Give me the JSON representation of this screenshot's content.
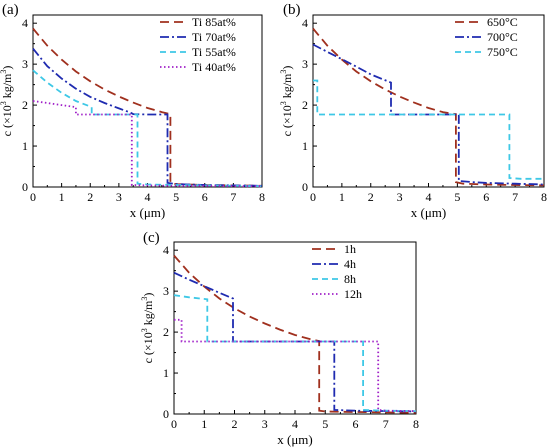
{
  "chart_data": [
    {
      "type": "line",
      "panel_label": "(a)",
      "xlabel": "x (μm)",
      "ylabel_parts": [
        "c (×10",
        "3",
        " kg/m",
        "3",
        ")"
      ],
      "xlim": [
        0,
        8
      ],
      "ylim": [
        0,
        4.2
      ],
      "xticks": [
        "0",
        "1",
        "2",
        "3",
        "4",
        "5",
        "6",
        "7",
        "8"
      ],
      "yticks": [
        "0",
        "1",
        "2",
        "3",
        "4"
      ],
      "legend_position": "top-right",
      "series": [
        {
          "name": "Ti 85at%",
          "color": "#a0301e",
          "dash": "long-dash",
          "x": [
            0,
            0.5,
            1,
            1.5,
            2,
            2.5,
            3,
            3.5,
            4,
            4.5,
            4.8,
            4.8,
            4.85,
            5,
            6,
            7,
            8
          ],
          "y": [
            3.87,
            3.45,
            3.11,
            2.82,
            2.58,
            2.38,
            2.21,
            2.06,
            1.93,
            1.83,
            1.78,
            0.12,
            0.08,
            0.07,
            0.05,
            0.04,
            0.03
          ]
        },
        {
          "name": "Ti 70at%",
          "color": "#1f2bb0",
          "dash": "dash-dot",
          "x": [
            0,
            0.5,
            1,
            1.5,
            2,
            2.5,
            3,
            3.4,
            3.5,
            4.0,
            4.7,
            4.7,
            5,
            6,
            7,
            8
          ],
          "y": [
            3.38,
            2.95,
            2.65,
            2.4,
            2.2,
            2.05,
            1.92,
            1.82,
            1.78,
            1.77,
            1.77,
            0.1,
            0.07,
            0.05,
            0.04,
            0.03
          ]
        },
        {
          "name": "Ti 55at%",
          "color": "#3ec8e6",
          "dash": "dash",
          "x": [
            0,
            0.5,
            1,
            1.5,
            2.05,
            2.05,
            3,
            3.65,
            3.65,
            4,
            5,
            6,
            7,
            8
          ],
          "y": [
            2.85,
            2.55,
            2.3,
            2.1,
            1.95,
            1.77,
            1.77,
            1.77,
            0.08,
            0.06,
            0.05,
            0.04,
            0.03,
            0.02
          ]
        },
        {
          "name": "Ti 40at%",
          "color": "#a020c8",
          "dash": "dot",
          "x": [
            0,
            0.5,
            1,
            1.5,
            1.5,
            2.5,
            3.45,
            3.45,
            4,
            5,
            6,
            7,
            8
          ],
          "y": [
            2.1,
            2.05,
            2.0,
            1.95,
            1.77,
            1.77,
            1.77,
            0.05,
            0.04,
            0.03,
            0.03,
            0.02,
            0.02
          ]
        }
      ]
    },
    {
      "type": "line",
      "panel_label": "(b)",
      "xlabel": "x (μm)",
      "ylabel_parts": [
        "c (×10",
        "3",
        " kg/m",
        "3",
        ")"
      ],
      "xlim": [
        0,
        8
      ],
      "ylim": [
        0,
        4.2
      ],
      "xticks": [
        "0",
        "1",
        "2",
        "3",
        "4",
        "5",
        "6",
        "7",
        "8"
      ],
      "yticks": [
        "0",
        "1",
        "2",
        "3",
        "4"
      ],
      "legend_position": "top-right",
      "series": [
        {
          "name": "650°C",
          "color": "#a0301e",
          "dash": "long-dash",
          "x": [
            0,
            0.5,
            1,
            1.5,
            2,
            2.5,
            3,
            3.5,
            4,
            4.5,
            4.95,
            4.95,
            5.2,
            6,
            7,
            8
          ],
          "y": [
            3.87,
            3.45,
            3.11,
            2.82,
            2.58,
            2.38,
            2.21,
            2.06,
            1.93,
            1.83,
            1.78,
            0.12,
            0.08,
            0.06,
            0.05,
            0.04
          ]
        },
        {
          "name": "700°C",
          "color": "#1f2bb0",
          "dash": "dash-dot",
          "x": [
            0,
            0.5,
            1,
            1.5,
            2,
            2.7,
            2.7,
            4,
            5.05,
            5.05,
            5.5,
            6,
            7,
            8
          ],
          "y": [
            3.48,
            3.3,
            3.12,
            2.94,
            2.75,
            2.55,
            1.77,
            1.77,
            1.77,
            0.15,
            0.12,
            0.1,
            0.08,
            0.06
          ]
        },
        {
          "name": "750°C",
          "color": "#3ec8e6",
          "dash": "dash",
          "x": [
            0,
            0.15,
            0.15,
            2,
            4,
            6,
            6.8,
            6.8,
            7.2,
            8
          ],
          "y": [
            2.6,
            2.6,
            1.77,
            1.77,
            1.77,
            1.77,
            1.77,
            0.22,
            0.2,
            0.2
          ]
        }
      ]
    },
    {
      "type": "line",
      "panel_label": "(c)",
      "xlabel": "x (μm)",
      "ylabel_parts": [
        "c (×10",
        "3",
        " kg/m",
        "3",
        ")"
      ],
      "xlim": [
        0,
        8
      ],
      "ylim": [
        0,
        4.2
      ],
      "xticks": [
        "0",
        "1",
        "2",
        "3",
        "4",
        "5",
        "6",
        "7",
        "8"
      ],
      "yticks": [
        "0",
        "1",
        "2",
        "3",
        "4"
      ],
      "legend_position": "top-right",
      "series": [
        {
          "name": "1h",
          "color": "#a0301e",
          "dash": "long-dash",
          "x": [
            0,
            0.5,
            1,
            1.5,
            2,
            2.5,
            3,
            3.5,
            4,
            4.5,
            4.8,
            4.8,
            5,
            6,
            7,
            8
          ],
          "y": [
            3.87,
            3.45,
            3.11,
            2.82,
            2.58,
            2.38,
            2.21,
            2.06,
            1.93,
            1.83,
            1.78,
            0.08,
            0.06,
            0.05,
            0.04,
            0.03
          ]
        },
        {
          "name": "4h",
          "color": "#1f2bb0",
          "dash": "dash-dot",
          "x": [
            0,
            0.5,
            1,
            1.5,
            1.95,
            1.95,
            3,
            4,
            5.3,
            5.3,
            6,
            7,
            8
          ],
          "y": [
            3.45,
            3.28,
            3.12,
            2.96,
            2.82,
            1.77,
            1.77,
            1.77,
            1.77,
            0.1,
            0.08,
            0.07,
            0.06
          ]
        },
        {
          "name": "8h",
          "color": "#3ec8e6",
          "dash": "dash",
          "x": [
            0,
            0.5,
            1.1,
            1.1,
            3,
            5,
            6.25,
            6.25,
            7,
            8
          ],
          "y": [
            2.9,
            2.85,
            2.8,
            1.77,
            1.77,
            1.77,
            1.77,
            0.1,
            0.08,
            0.07
          ]
        },
        {
          "name": "12h",
          "color": "#a020c8",
          "dash": "dot",
          "x": [
            0,
            0.25,
            0.25,
            2,
            4,
            6,
            6.75,
            6.75,
            7,
            8
          ],
          "y": [
            2.3,
            2.3,
            1.77,
            1.77,
            1.77,
            1.77,
            1.77,
            0.1,
            0.08,
            0.07
          ]
        }
      ]
    }
  ]
}
